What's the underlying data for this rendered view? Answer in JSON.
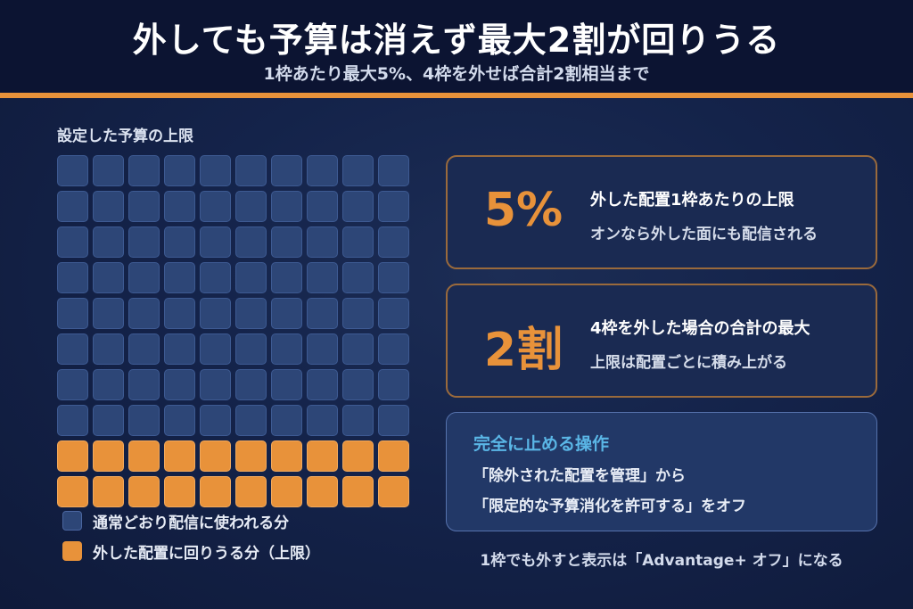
{
  "header": {
    "title": "外しても予算は消えず最大2割が回りうる",
    "subtitle": "1枠あたり最大5%、4枠を外せば合計2割相当まで"
  },
  "budget_grid": {
    "label": "設定した予算の上限",
    "total_cells": 100,
    "regular_cells": 80,
    "excluded_cells": 20
  },
  "legend": {
    "regular": "通常どおり配信に使われる分",
    "excluded": "外した配置に回りうる分（上限）"
  },
  "stats": [
    {
      "value": "5%",
      "line1": "外した配置1枠あたりの上限",
      "line2": "オンなら外した面にも配信される"
    },
    {
      "value": "2割",
      "line1": "4枠を外した場合の合計の最大",
      "line2": "上限は配置ごとに積み上がる"
    }
  ],
  "action": {
    "title": "完全に止める操作",
    "step1": "「除外された配置を管理」から",
    "step2": "「限定的な予算消化を許可する」をオフ"
  },
  "footer_note": "1枠でも外すと表示は「Advantage+ オフ」になる",
  "colors": {
    "accent": "#e8923a",
    "regular": "#2d4677",
    "action_title": "#5ab6e6",
    "background": "#14234a"
  }
}
